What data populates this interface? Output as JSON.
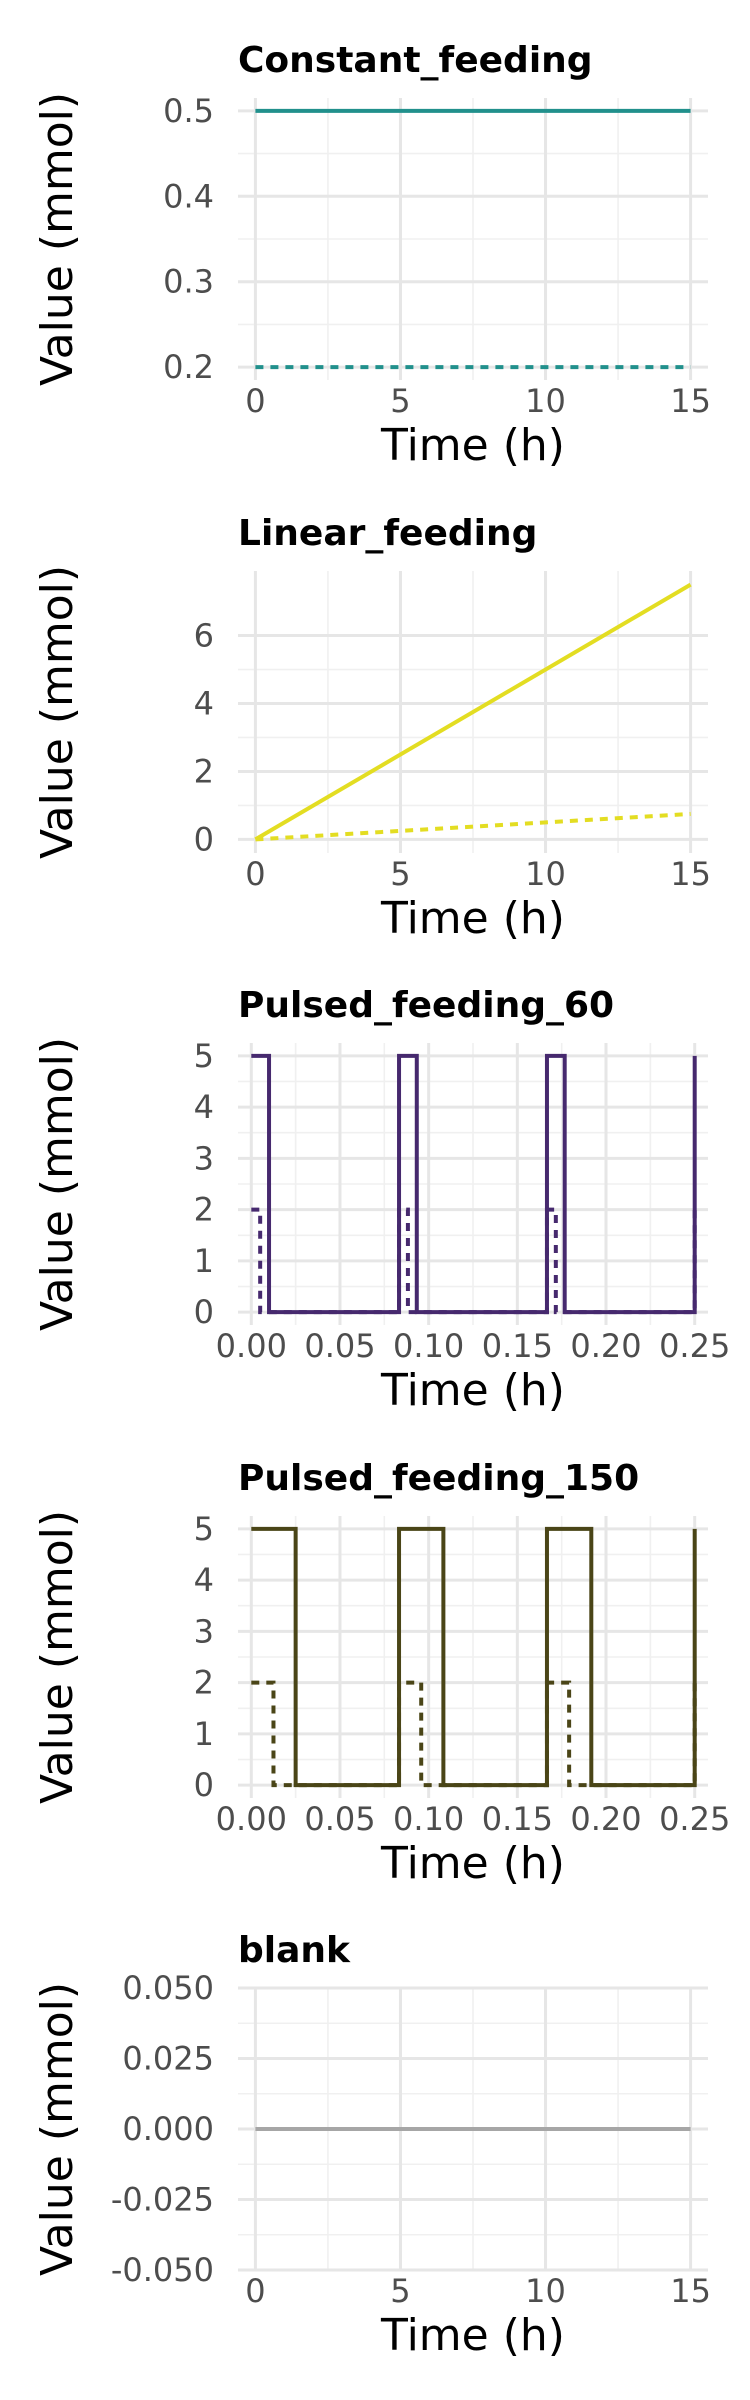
{
  "chart_data": [
    {
      "type": "line",
      "title": "Constant_feeding",
      "xlabel": "Time (h)",
      "ylabel": "Value (mmol)",
      "xlim": [
        -0.6,
        15.6
      ],
      "ylim": [
        0.185,
        0.515
      ],
      "xticks": [
        "0",
        "5",
        "10",
        "15"
      ],
      "xtick_values": [
        0,
        5,
        10,
        15
      ],
      "yticks": [
        "0.2",
        "0.3",
        "0.4",
        "0.5"
      ],
      "ytick_values": [
        0.2,
        0.3,
        0.4,
        0.5
      ],
      "color": "#21908C",
      "series": [
        {
          "style": "solid",
          "x": [
            0,
            15
          ],
          "y": [
            0.5,
            0.5
          ]
        },
        {
          "style": "dashed",
          "x": [
            0,
            15
          ],
          "y": [
            0.2,
            0.2
          ]
        }
      ]
    },
    {
      "type": "line",
      "title": "Linear_feeding",
      "xlabel": "Time (h)",
      "ylabel": "Value (mmol)",
      "xlim": [
        -0.6,
        15.6
      ],
      "ylim": [
        -0.4,
        7.9
      ],
      "xticks": [
        "0",
        "5",
        "10",
        "15"
      ],
      "xtick_values": [
        0,
        5,
        10,
        15
      ],
      "yticks": [
        "0",
        "2",
        "4",
        "6"
      ],
      "ytick_values": [
        0,
        2,
        4,
        6
      ],
      "color": "#E3DD22",
      "series": [
        {
          "style": "solid",
          "x": [
            0,
            15
          ],
          "y": [
            0,
            7.5
          ]
        },
        {
          "style": "dashed",
          "x": [
            0,
            15
          ],
          "y": [
            0,
            0.75
          ]
        }
      ]
    },
    {
      "type": "line",
      "title": "Pulsed_feeding_60",
      "xlabel": "Time (h)",
      "ylabel": "Value (mmol)",
      "xlim": [
        -0.0075,
        0.2575
      ],
      "ylim": [
        -0.25,
        5.25
      ],
      "xticks": [
        "0.00",
        "0.05",
        "0.10",
        "0.15",
        "0.20",
        "0.25"
      ],
      "xtick_values": [
        0,
        0.05,
        0.1,
        0.15,
        0.2,
        0.25
      ],
      "yticks": [
        "0",
        "1",
        "2",
        "3",
        "4",
        "5"
      ],
      "ytick_values": [
        0,
        1,
        2,
        3,
        4,
        5
      ],
      "color": "#46296E",
      "series": [
        {
          "style": "solid",
          "x": [
            0,
            0.01,
            0.01,
            0.0833,
            0.0833,
            0.0933,
            0.0933,
            0.1667,
            0.1667,
            0.1767,
            0.1767,
            0.25,
            0.25
          ],
          "y": [
            5,
            5,
            0,
            0,
            5,
            5,
            0,
            0,
            5,
            5,
            0,
            0,
            5
          ]
        },
        {
          "style": "dashed",
          "x": [
            0,
            0.005,
            0.005,
            0.0833,
            0.0833,
            0.0883,
            0.0883,
            0.1667,
            0.1667,
            0.1717,
            0.1717,
            0.25,
            0.25
          ],
          "y": [
            2,
            2,
            0,
            0,
            2,
            2,
            0,
            0,
            2,
            2,
            0,
            0,
            2
          ]
        }
      ]
    },
    {
      "type": "line",
      "title": "Pulsed_feeding_150",
      "xlabel": "Time (h)",
      "ylabel": "Value (mmol)",
      "xlim": [
        -0.0075,
        0.2575
      ],
      "ylim": [
        -0.25,
        5.25
      ],
      "xticks": [
        "0.00",
        "0.05",
        "0.10",
        "0.15",
        "0.20",
        "0.25"
      ],
      "xtick_values": [
        0,
        0.05,
        0.1,
        0.15,
        0.2,
        0.25
      ],
      "yticks": [
        "0",
        "1",
        "2",
        "3",
        "4",
        "5"
      ],
      "ytick_values": [
        0,
        1,
        2,
        3,
        4,
        5
      ],
      "color": "#4A4517",
      "series": [
        {
          "style": "solid",
          "x": [
            0,
            0.025,
            0.025,
            0.0833,
            0.0833,
            0.1083,
            0.1083,
            0.1667,
            0.1667,
            0.1917,
            0.1917,
            0.25,
            0.25
          ],
          "y": [
            5,
            5,
            0,
            0,
            5,
            5,
            0,
            0,
            5,
            5,
            0,
            0,
            5
          ]
        },
        {
          "style": "dashed",
          "x": [
            0,
            0.0125,
            0.0125,
            0.0833,
            0.0833,
            0.0958,
            0.0958,
            0.1667,
            0.1667,
            0.1792,
            0.1792,
            0.25,
            0.25
          ],
          "y": [
            2,
            2,
            0,
            0,
            2,
            2,
            0,
            0,
            2,
            2,
            0,
            0,
            2
          ]
        }
      ]
    },
    {
      "type": "line",
      "title": "blank",
      "xlabel": "Time (h)",
      "ylabel": "Value (mmol)",
      "xlim": [
        -0.6,
        15.6
      ],
      "ylim": [
        -0.05,
        0.05
      ],
      "xticks": [
        "0",
        "5",
        "10",
        "15"
      ],
      "xtick_values": [
        0,
        5,
        10,
        15
      ],
      "yticks": [
        "-0.050",
        "-0.025",
        "0.000",
        "0.025",
        "0.050"
      ],
      "ytick_values": [
        -0.05,
        -0.025,
        0,
        0.025,
        0.05
      ],
      "color": "#A6A6A6",
      "series": [
        {
          "style": "solid",
          "x": [
            0,
            15
          ],
          "y": [
            0,
            0
          ]
        }
      ]
    }
  ]
}
